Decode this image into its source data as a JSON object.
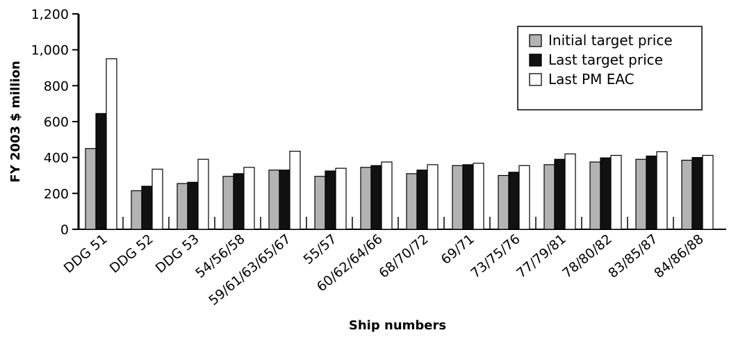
{
  "chart_data": {
    "type": "bar",
    "title": "",
    "xlabel": "Ship numbers",
    "ylabel": "FY 2003 $ million",
    "ylim": [
      0,
      1200
    ],
    "yticks": [
      0,
      200,
      400,
      600,
      800,
      1000,
      1200
    ],
    "ytick_labels": [
      "0",
      "200",
      "400",
      "600",
      "800",
      "1,000",
      "1,200"
    ],
    "grid": false,
    "legend_position": "top-right",
    "categories": [
      "DDG 51",
      "DDG 52",
      "DDG 53",
      "54/56/58",
      "59/61/63/65/67",
      "55/57",
      "60/62/64/66",
      "68/70/72",
      "69/71",
      "73/75/76",
      "77/79/81",
      "78/80/82",
      "83/85/87",
      "84/86/88"
    ],
    "series": [
      {
        "name": "Initial target price",
        "color": "#b3b3b3",
        "values": [
          450,
          215,
          255,
          295,
          330,
          295,
          345,
          310,
          355,
          300,
          360,
          375,
          390,
          385
        ]
      },
      {
        "name": "Last target price",
        "color": "#111111",
        "values": [
          645,
          240,
          262,
          310,
          330,
          325,
          355,
          330,
          360,
          318,
          390,
          398,
          408,
          400
        ]
      },
      {
        "name": "Last PM EAC",
        "color": "#ffffff",
        "values": [
          950,
          335,
          390,
          345,
          435,
          340,
          375,
          360,
          368,
          355,
          420,
          412,
          432,
          412
        ]
      }
    ]
  }
}
